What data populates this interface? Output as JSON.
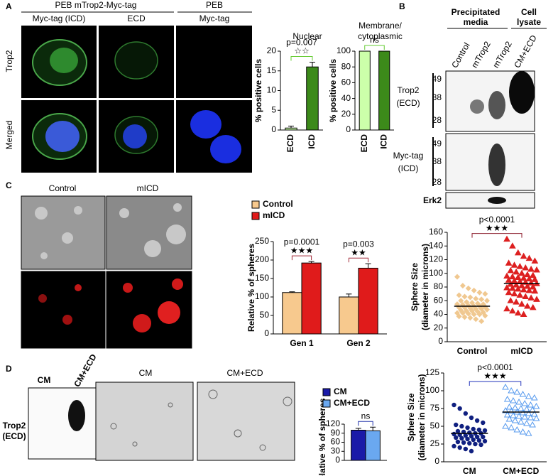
{
  "figure": {
    "panel_labels": [
      "A",
      "B",
      "C",
      "D"
    ],
    "a": {
      "group_headers": [
        "PEB mTrop2-Myc-tag",
        "PEB"
      ],
      "column_headers": [
        "Myc-tag (ICD)",
        "ECD",
        "Myc-tag"
      ],
      "row_labels": [
        "Trop2",
        "Merged"
      ]
    },
    "b": {
      "media_header": [
        "Precipitated",
        "media"
      ],
      "lysate_header": [
        "Cell",
        "lysate"
      ],
      "lanes": [
        "Control",
        "mTrop2",
        "mTrop2",
        "CM+ECD"
      ],
      "blots": [
        {
          "label": [
            "Trop2",
            "(ECD)"
          ],
          "markers": [
            "49",
            "38",
            "28"
          ]
        },
        {
          "label": [
            "Myc-tag",
            "(ICD)"
          ],
          "markers": [
            "49",
            "38",
            "28"
          ]
        },
        {
          "label": [
            "Erk2"
          ]
        }
      ]
    },
    "c": {
      "image_labels": [
        "Control",
        "mICD"
      ]
    },
    "d": {
      "blot_lanes": [
        "CM",
        "CM+ECD"
      ],
      "blot_label": [
        "Trop2",
        "(ECD)"
      ],
      "image_labels": [
        "CM",
        "CM+ECD"
      ]
    }
  },
  "chart_data": [
    {
      "type": "bar",
      "title": "Nuclear",
      "categories": [
        "ECD",
        "ICD"
      ],
      "values": [
        0.5,
        16
      ],
      "errors": [
        0.5,
        1.2
      ],
      "colors": [
        "#ccffaa",
        "#3c8a1a"
      ],
      "ylim": [
        0,
        20
      ],
      "yticks": [
        0,
        5,
        10,
        15,
        20
      ],
      "ylabel": "% positive cells",
      "annotations": [
        {
          "p": "p=0.007",
          "stars": "☆☆"
        }
      ],
      "annotation_color": "#66cc33"
    },
    {
      "type": "bar",
      "title": [
        "Membrane/",
        "cytoplasmic"
      ],
      "categories": [
        "ECD",
        "ICD"
      ],
      "values": [
        100,
        100
      ],
      "colors": [
        "#ccffaa",
        "#3c8a1a"
      ],
      "ylim": [
        0,
        100
      ],
      "yticks": [
        0,
        20,
        40,
        60,
        80,
        100
      ],
      "ylabel": "% positive cells",
      "annotations": [
        {
          "p": "ns"
        }
      ],
      "annotation_color": "#66cc33"
    },
    {
      "type": "bar",
      "categories": [
        "Gen 1",
        "Gen 2"
      ],
      "series": [
        {
          "name": "Control",
          "color": "#f7c98e",
          "values": [
            112,
            100
          ],
          "errors": [
            2,
            8
          ]
        },
        {
          "name": "mICD",
          "color": "#e01b1b",
          "values": [
            192,
            178
          ],
          "errors": [
            4,
            12
          ]
        }
      ],
      "ylim": [
        0,
        250
      ],
      "yticks": [
        0,
        50,
        100,
        150,
        200,
        250
      ],
      "ylabel": "Relative % of spheres",
      "legend": "top-left",
      "annotations": [
        {
          "p": "p=0.0001",
          "stars": "★★★"
        },
        {
          "p": "p=0.003",
          "stars": "★★"
        }
      ],
      "annotation_color": "#a02838"
    },
    {
      "type": "strip",
      "categories": [
        "Control",
        "mICD"
      ],
      "values": [
        [
          95,
          82,
          78,
          75,
          72,
          70,
          68,
          66,
          65,
          63,
          62,
          60,
          60,
          58,
          57,
          56,
          55,
          55,
          54,
          53,
          52,
          52,
          51,
          50,
          50,
          49,
          48,
          48,
          47,
          46,
          45,
          45,
          44,
          43,
          42,
          42,
          41,
          40,
          40,
          38,
          37,
          36,
          35,
          33,
          30
        ],
        [
          150,
          140,
          130,
          125,
          122,
          118,
          115,
          112,
          110,
          108,
          106,
          105,
          104,
          102,
          100,
          98,
          97,
          96,
          95,
          94,
          93,
          92,
          91,
          90,
          89,
          88,
          87,
          86,
          85,
          84,
          83,
          82,
          81,
          80,
          79,
          78,
          77,
          76,
          75,
          74,
          72,
          70,
          68,
          66,
          64,
          62,
          60,
          58,
          55,
          52,
          50,
          48,
          45,
          42,
          40
        ]
      ],
      "means": [
        52,
        85
      ],
      "colors": [
        "#f0c890",
        "#dd2020"
      ],
      "markers": [
        "diamond",
        "triangle"
      ],
      "ylim": [
        0,
        160
      ],
      "yticks": [
        0,
        20,
        40,
        60,
        80,
        100,
        120,
        140,
        160
      ],
      "ylabel": [
        "Sphere Size",
        "(diameter in microns)"
      ],
      "annotations": [
        {
          "p": "p<0.0001",
          "stars": "★★★"
        }
      ],
      "annotation_color": "#8b1a2a"
    },
    {
      "type": "bar",
      "categories": [
        null
      ],
      "series": [
        {
          "name": "CM",
          "color": "#1a1aa8",
          "values": [
            100
          ],
          "errors": [
            6
          ]
        },
        {
          "name": "CM+ECD",
          "color": "#6aa8f0",
          "values": [
            98
          ],
          "errors": [
            12
          ]
        }
      ],
      "ylim": [
        0,
        120
      ],
      "yticks": [
        0,
        30,
        60,
        90,
        120
      ],
      "ylabel": "Relative % of spheres",
      "legend": "top-left",
      "annotations": [
        {
          "p": "ns"
        }
      ],
      "annotation_color": "#2233aa"
    },
    {
      "type": "strip",
      "categories": [
        "CM",
        "CM+ECD"
      ],
      "values": [
        [
          80,
          75,
          68,
          62,
          58,
          55,
          52,
          50,
          48,
          46,
          45,
          44,
          43,
          42,
          41,
          40,
          40,
          39,
          38,
          37,
          36,
          35,
          35,
          34,
          33,
          32,
          31,
          30,
          29,
          28,
          27,
          26,
          25,
          24,
          22,
          20,
          18,
          15
        ],
        [
          105,
          100,
          98,
          95,
          92,
          90,
          88,
          86,
          84,
          82,
          80,
          78,
          77,
          76,
          75,
          74,
          73,
          72,
          71,
          70,
          69,
          68,
          67,
          66,
          65,
          64,
          63,
          62,
          61,
          60,
          58,
          56,
          54,
          52,
          50,
          48,
          45,
          42,
          40
        ]
      ],
      "means": [
        40,
        70
      ],
      "colors": [
        "#102080",
        "#5599ee"
      ],
      "markers": [
        "circle",
        "triangle-open"
      ],
      "ylim": [
        0,
        125
      ],
      "yticks": [
        0,
        25,
        50,
        75,
        100,
        125
      ],
      "ylabel": [
        "Sphere Size",
        "(diameter in microns)"
      ],
      "annotations": [
        {
          "p": "p<0.0001",
          "stars": "★★★"
        }
      ],
      "annotation_color": "#2233bb"
    }
  ]
}
